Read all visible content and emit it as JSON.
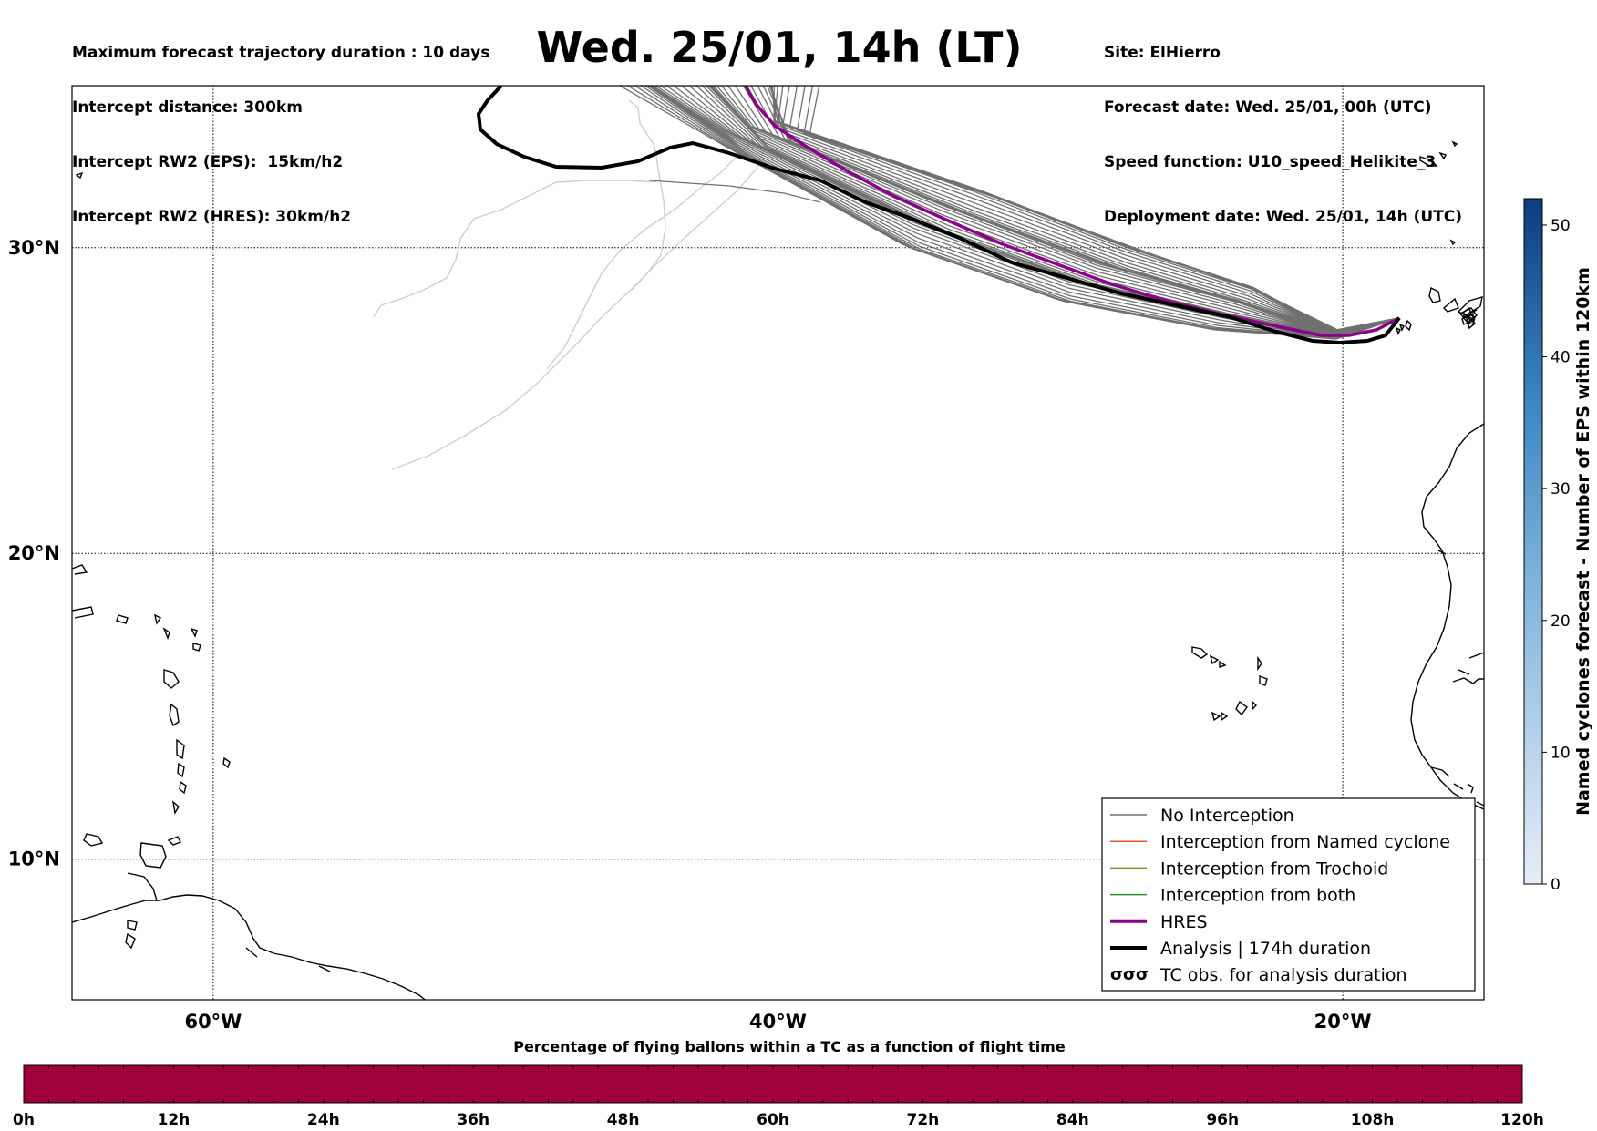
{
  "title": "Wed. 25/01, 14h (LT)",
  "info_left": [
    "Maximum forecast trajectory duration : 10 days",
    "Intercept distance: 300km",
    "Intercept RW2 (EPS):  15km/h2",
    "Intercept RW2 (HRES): 30km/h2"
  ],
  "info_right": [
    "Site: ElHierro",
    "Forecast date: Wed. 25/01, 00h (UTC)",
    "Speed function: U10_speed_Helikite_3",
    "Deployment date: Wed. 25/01, 14h (UTC)"
  ],
  "map": {
    "lat_labels": [
      "30°N",
      "20°N",
      "10°N"
    ],
    "lon_labels": [
      "60°W",
      "40°W",
      "20°W"
    ],
    "lat_values": [
      30,
      20,
      10
    ],
    "lon_values": [
      -60,
      -40,
      -20
    ],
    "extent": {
      "lon_min": -65,
      "lon_max": -15,
      "lat_min": 5.4,
      "lat_max": 35.3
    },
    "site": {
      "name": "ElHierro",
      "lon": -18.0,
      "lat": 27.7
    }
  },
  "legend": {
    "items": [
      {
        "label": "No Interception",
        "color": "#707070",
        "style": "thin"
      },
      {
        "label": "Interception from Named cyclone",
        "color": "#e8541e",
        "style": "thin"
      },
      {
        "label": "Interception from Trochoid",
        "color": "#8a8a22",
        "style": "thin"
      },
      {
        "label": "Interception from both",
        "color": "#2e8b2e",
        "style": "thin"
      },
      {
        "label": "HRES",
        "color": "#8b008b",
        "style": "thick"
      },
      {
        "label": "Analysis | 174h duration",
        "color": "#000000",
        "style": "thick"
      },
      {
        "label": "TC obs. for analysis duration",
        "color": "#000000",
        "style": "symbol"
      }
    ]
  },
  "colorbar": {
    "label": "Named cyclones forecast - Number of EPS within 120km",
    "ticks": [
      "0",
      "10",
      "20",
      "30",
      "40",
      "50"
    ],
    "min": 0,
    "max": 52
  },
  "bottom_bar": {
    "title": "Percentage of flying ballons within a TC as a function of flight time",
    "ticks": [
      "0h",
      "12h",
      "24h",
      "36h",
      "48h",
      "60h",
      "72h",
      "84h",
      "96h",
      "108h",
      "120h"
    ],
    "fill_color": "#a0003c"
  }
}
